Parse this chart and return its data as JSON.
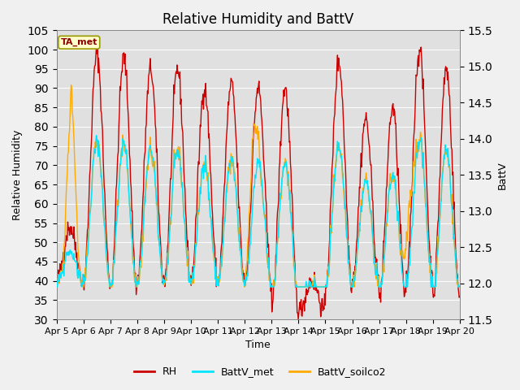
{
  "title": "Relative Humidity and BattV",
  "xlabel": "Time",
  "ylabel_left": "Relative Humidity",
  "ylabel_right": "BattV",
  "annotation": "TA_met",
  "ylim_left": [
    30,
    105
  ],
  "ylim_right": [
    11.5,
    15.5
  ],
  "yticks_left": [
    30,
    35,
    40,
    45,
    50,
    55,
    60,
    65,
    70,
    75,
    80,
    85,
    90,
    95,
    100,
    105
  ],
  "yticks_right": [
    11.5,
    12.0,
    12.5,
    13.0,
    13.5,
    14.0,
    14.5,
    15.0,
    15.5
  ],
  "xtick_labels": [
    "Apr 5",
    "Apr 6",
    "Apr 7",
    "Apr 8",
    "Apr 9",
    "Apr 10",
    "Apr 11",
    "Apr 12",
    "Apr 13",
    "Apr 14",
    "Apr 15",
    "Apr 16",
    "Apr 17",
    "Apr 18",
    "Apr 19",
    "Apr 20"
  ],
  "rh_color": "#cc0000",
  "battv_met_color": "#00e5ff",
  "battv_soilco2_color": "#ffaa00",
  "fig_bg_color": "#f0f0f0",
  "plot_bg_color": "#e0e0e0",
  "legend_labels": [
    "RH",
    "BattV_met",
    "BattV_soilco2"
  ],
  "rh_linewidth": 1.0,
  "battv_linewidth": 1.0,
  "title_fontsize": 12,
  "label_fontsize": 9,
  "tick_fontsize": 8
}
